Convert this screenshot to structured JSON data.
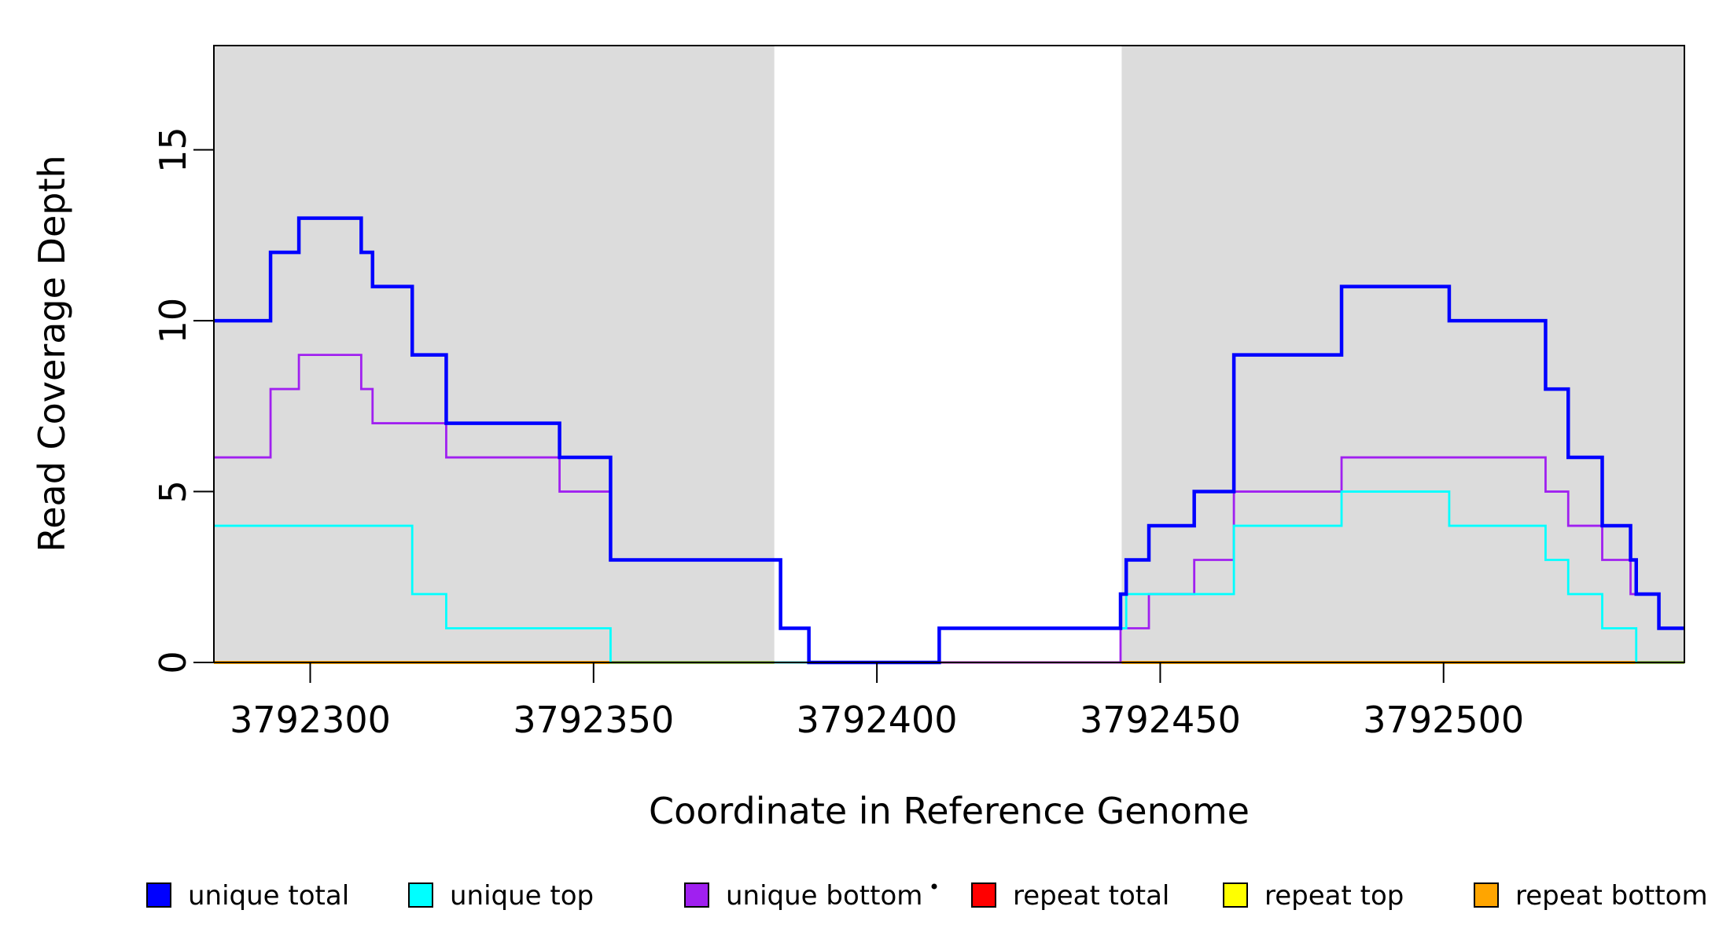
{
  "chart_data": {
    "type": "line",
    "subtype": "step",
    "title": "",
    "xlabel": "Coordinate in Reference Genome",
    "ylabel": "Read Coverage Depth",
    "x_range": [
      3792283,
      3792542.5
    ],
    "y_range": [
      0,
      18.05
    ],
    "x_ticks": [
      3792300,
      3792350,
      3792400,
      3792450,
      3792500
    ],
    "y_ticks": [
      0,
      5,
      10,
      15
    ],
    "grid": false,
    "legend_position": "bottom",
    "axis_color": "#000000",
    "background_color": "#ffffff",
    "shaded_regions": [
      {
        "name": "left-gray-block",
        "x0": 3792283,
        "x1": 3792381.9,
        "color": "#DCDCDC"
      },
      {
        "name": "right-gray-block",
        "x0": 3792443.2,
        "x1": 3792542.5,
        "color": "#DCDCDC"
      }
    ],
    "series": [
      {
        "name": "unique total",
        "color": "#0000FF",
        "width": 4.5,
        "z": 6,
        "start_value": 10,
        "steps": [
          [
            3792293,
            12
          ],
          [
            3792298,
            13
          ],
          [
            3792309,
            12
          ],
          [
            3792311,
            11
          ],
          [
            3792318,
            9
          ],
          [
            3792324,
            7
          ],
          [
            3792344,
            6
          ],
          [
            3792353,
            3
          ],
          [
            3792383,
            1
          ],
          [
            3792388,
            0
          ],
          [
            3792411,
            1
          ],
          [
            3792443,
            2
          ],
          [
            3792444,
            3
          ],
          [
            3792448,
            4
          ],
          [
            3792456,
            5
          ],
          [
            3792463,
            9
          ],
          [
            3792482,
            11
          ],
          [
            3792501,
            10
          ],
          [
            3792518,
            8
          ],
          [
            3792522,
            6
          ],
          [
            3792528,
            4
          ],
          [
            3792533,
            3
          ],
          [
            3792534,
            2
          ],
          [
            3792538,
            1
          ]
        ]
      },
      {
        "name": "unique top",
        "color": "#00FFFF",
        "width": 2.8,
        "z": 5,
        "start_value": 4,
        "steps": [
          [
            3792318,
            2
          ],
          [
            3792324,
            1
          ],
          [
            3792353,
            0
          ],
          [
            3792411,
            1
          ],
          [
            3792444,
            2
          ],
          [
            3792463,
            4
          ],
          [
            3792482,
            5
          ],
          [
            3792501,
            4
          ],
          [
            3792518,
            3
          ],
          [
            3792522,
            2
          ],
          [
            3792528,
            1
          ],
          [
            3792534,
            0
          ]
        ]
      },
      {
        "name": "unique bottom",
        "color": "#A020F0",
        "width": 2.8,
        "z": 4,
        "start_value": 6,
        "steps": [
          [
            3792293,
            8
          ],
          [
            3792298,
            9
          ],
          [
            3792309,
            8
          ],
          [
            3792311,
            7
          ],
          [
            3792324,
            6
          ],
          [
            3792344,
            5
          ],
          [
            3792353,
            3
          ],
          [
            3792383,
            1
          ],
          [
            3792388,
            0
          ],
          [
            3792443,
            1
          ],
          [
            3792448,
            2
          ],
          [
            3792456,
            3
          ],
          [
            3792463,
            5
          ],
          [
            3792482,
            6
          ],
          [
            3792518,
            5
          ],
          [
            3792522,
            4
          ],
          [
            3792528,
            3
          ],
          [
            3792533,
            2
          ],
          [
            3792538,
            1
          ]
        ]
      },
      {
        "name": "repeat total",
        "color": "#FF0000",
        "width": 2.8,
        "z": 2,
        "start_value": 0,
        "steps": []
      },
      {
        "name": "repeat top",
        "color": "#FFFF00",
        "width": 2.8,
        "z": 1,
        "start_value": 0,
        "steps": [],
        "segments": [
          [
            3792283,
            3792381.9
          ],
          [
            3792443.2,
            3792542.5
          ]
        ]
      },
      {
        "name": "repeat bottom",
        "color": "#FFA500",
        "width": 4,
        "z": 3,
        "start_value": 0,
        "steps": [],
        "segments": [
          [
            3792283,
            3792381.9
          ],
          [
            3792443.2,
            3792542.5
          ]
        ]
      }
    ]
  },
  "legend": {
    "items": [
      {
        "label": "unique total",
        "color": "#0000FF"
      },
      {
        "label": "unique top",
        "color": "#00FFFF"
      },
      {
        "label": "unique bottom",
        "color": "#A020F0"
      },
      {
        "label": "repeat total",
        "color": "#FF0000"
      },
      {
        "label": "repeat top",
        "color": "#FFFF00"
      },
      {
        "label": "repeat bottom",
        "color": "#FFA500"
      }
    ],
    "marker_border_color": "#000000"
  }
}
